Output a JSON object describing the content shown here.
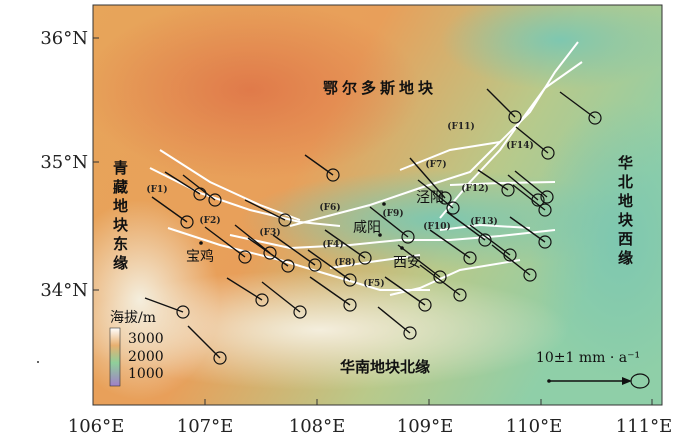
{
  "map": {
    "xticks": [
      "106°E",
      "107°E",
      "108°E",
      "109°E",
      "110°E",
      "111°E"
    ],
    "yticks": [
      "36°N",
      "35°N",
      "34°N"
    ],
    "regions": [
      "鄂尔多斯地块",
      "青藏地块东缘",
      "华北地块西缘",
      "华南地块北缘"
    ],
    "cities": [
      "泾阳",
      "咸阳",
      "西安",
      "宝鸡"
    ],
    "faults": [
      "(F1)",
      "(F2)",
      "(F3)",
      "(F4)",
      "(F5)",
      "(F6)",
      "(F7)",
      "(F8)",
      "(F9)",
      "(F10)",
      "(F11)",
      "(F12)",
      "(F13)",
      "(F14)"
    ],
    "legend": {
      "title": "海拔/m",
      "labels": [
        "3000",
        "2000",
        "1000"
      ]
    },
    "scale": "10±1 mm · a⁻¹"
  }
}
